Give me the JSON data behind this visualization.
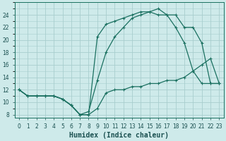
{
  "xlabel": "Humidex (Indice chaleur)",
  "bg_color": "#ceeaea",
  "grid_color": "#a8cece",
  "line_color": "#1a7060",
  "xlim": [
    -0.5,
    23.5
  ],
  "ylim": [
    7.5,
    26.0
  ],
  "curve_upper_x": [
    0,
    1,
    2,
    3,
    4,
    5,
    6,
    7,
    8,
    9,
    10,
    11,
    12,
    13,
    14,
    15,
    16,
    17,
    18,
    19,
    20,
    21,
    22,
    23
  ],
  "curve_upper_y": [
    12,
    11,
    11,
    11,
    11,
    10.5,
    9.5,
    8,
    8,
    20.5,
    22.5,
    23,
    23.5,
    24,
    24.5,
    24.5,
    25,
    24,
    22,
    19.5,
    15,
    13,
    13,
    13
  ],
  "curve_lower_x": [
    0,
    1,
    2,
    3,
    4,
    5,
    6,
    7,
    8,
    9,
    10,
    11,
    12,
    13,
    14,
    15,
    16,
    17,
    18,
    19,
    20,
    21,
    22,
    23
  ],
  "curve_lower_y": [
    12,
    11,
    11,
    11,
    11,
    10.5,
    9.5,
    8,
    8,
    9,
    11.5,
    12,
    12,
    12.5,
    12.5,
    13,
    13,
    13.5,
    13.5,
    14,
    15,
    16,
    17,
    13
  ],
  "curve_mid_x": [
    0,
    1,
    2,
    3,
    4,
    5,
    6,
    7,
    8,
    9,
    10,
    11,
    12,
    13,
    14,
    15,
    16,
    17,
    18,
    19,
    20,
    21,
    22,
    23
  ],
  "curve_mid_y": [
    12,
    11,
    11,
    11,
    11,
    10.5,
    9.5,
    8,
    8.5,
    13.5,
    18,
    20.5,
    22,
    23.5,
    24,
    24.5,
    24,
    24,
    24,
    22,
    22,
    19.5,
    13,
    13
  ],
  "xtick_labels": [
    "0",
    "1",
    "2",
    "3",
    "4",
    "5",
    "6",
    "7",
    "8",
    "9",
    "10",
    "11",
    "12",
    "13",
    "14",
    "15",
    "16",
    "17",
    "18",
    "19",
    "20",
    "21",
    "22",
    "23"
  ],
  "xticks": [
    0,
    1,
    2,
    3,
    4,
    5,
    6,
    7,
    8,
    9,
    10,
    11,
    12,
    13,
    14,
    15,
    16,
    17,
    18,
    19,
    20,
    21,
    22,
    23
  ],
  "yticks": [
    8,
    10,
    12,
    14,
    16,
    18,
    20,
    22,
    24
  ],
  "tick_fontsize": 5.5,
  "label_fontsize": 7.0
}
